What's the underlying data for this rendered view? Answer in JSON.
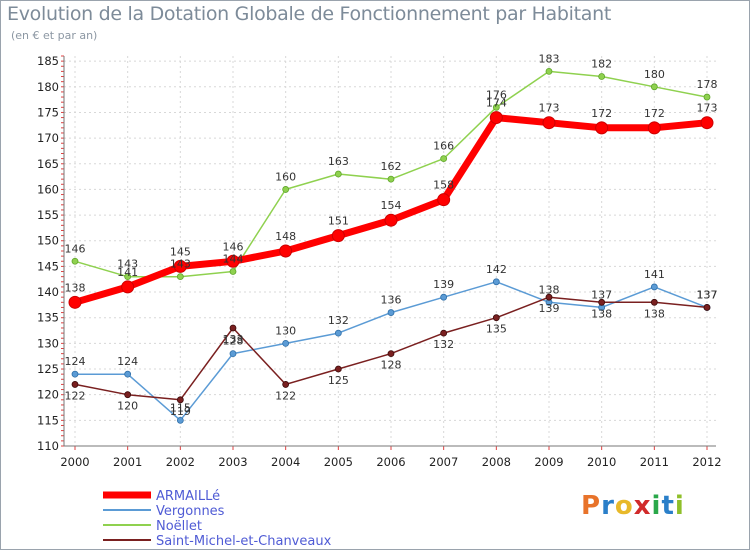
{
  "title": "Evolution de la Dotation Globale de Fonctionnement par Habitant",
  "subtitle": "(en € et par an)",
  "logo": "Proxiti",
  "chart_data": {
    "type": "line",
    "title": "Evolution de la Dotation Globale de Fonctionnement par Habitant",
    "subtitle": "(en € et par an)",
    "xlabel": "",
    "ylabel": "",
    "x": [
      "2000",
      "2001",
      "2002",
      "2003",
      "2004",
      "2005",
      "2006",
      "2007",
      "2008",
      "2009",
      "2010",
      "2011",
      "2012"
    ],
    "ylim": [
      110,
      186
    ],
    "yticks": [
      110,
      115,
      120,
      125,
      130,
      135,
      140,
      145,
      150,
      155,
      160,
      165,
      170,
      175,
      180,
      185
    ],
    "grid": true,
    "legend_position": "bottom-left",
    "series": [
      {
        "name": "ARMAILLé",
        "color": "#ff0000",
        "values": [
          138,
          141,
          145,
          146,
          148,
          151,
          154,
          158,
          174,
          173,
          172,
          172,
          173
        ]
      },
      {
        "name": "Vergonnes",
        "color": "#5b9bd5",
        "values": [
          124,
          124,
          115,
          128,
          130,
          132,
          136,
          139,
          142,
          138,
          137,
          141,
          137
        ]
      },
      {
        "name": "Noëllet",
        "color": "#8fd14f",
        "values": [
          146,
          143,
          143,
          144,
          160,
          163,
          162,
          166,
          176,
          183,
          182,
          180,
          178
        ]
      },
      {
        "name": "Saint-Michel-et-Chanveaux",
        "color": "#7a2020",
        "values": [
          122,
          120,
          119,
          133,
          122,
          125,
          128,
          132,
          135,
          139,
          138,
          138,
          137
        ]
      }
    ]
  }
}
